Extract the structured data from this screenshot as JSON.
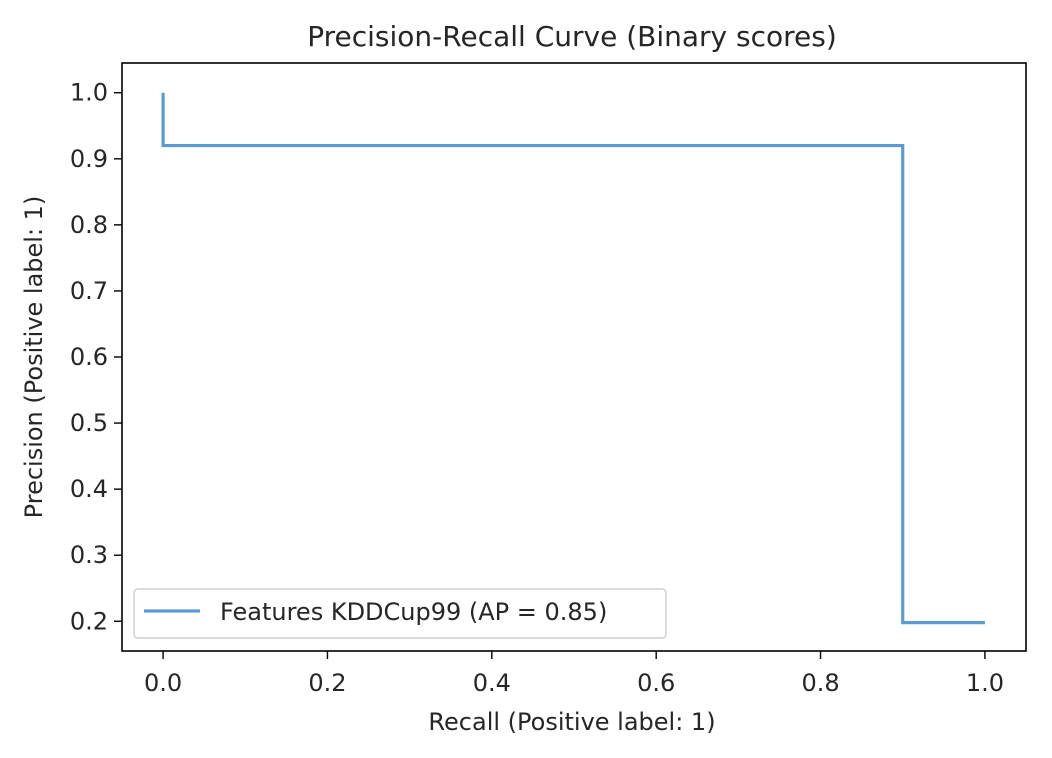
{
  "chart_data": {
    "type": "line",
    "title": "Precision-Recall Curve (Binary scores)",
    "xlabel": "Recall (Positive label: 1)",
    "ylabel": "Precision (Positive label: 1)",
    "xlim": [
      -0.05,
      1.05
    ],
    "ylim": [
      0.155,
      1.045
    ],
    "xticks": [
      0.0,
      0.2,
      0.4,
      0.6,
      0.8,
      1.0
    ],
    "xtick_labels": [
      "0.0",
      "0.2",
      "0.4",
      "0.6",
      "0.8",
      "1.0"
    ],
    "yticks": [
      0.2,
      0.3,
      0.4,
      0.5,
      0.6,
      0.7,
      0.8,
      0.9,
      1.0
    ],
    "ytick_labels": [
      "0.2",
      "0.3",
      "0.4",
      "0.5",
      "0.6",
      "0.7",
      "0.8",
      "0.9",
      "1.0"
    ],
    "grid": false,
    "legend_position": "lower-left",
    "series": [
      {
        "name": "Features KDDCup99 (AP = 0.85)",
        "color": "#5b9bd5",
        "drawstyle": "steps-post",
        "x": [
          0.0,
          0.0,
          0.9,
          0.9,
          1.0
        ],
        "y": [
          1.0,
          0.92,
          0.92,
          0.198,
          0.198
        ]
      }
    ]
  }
}
